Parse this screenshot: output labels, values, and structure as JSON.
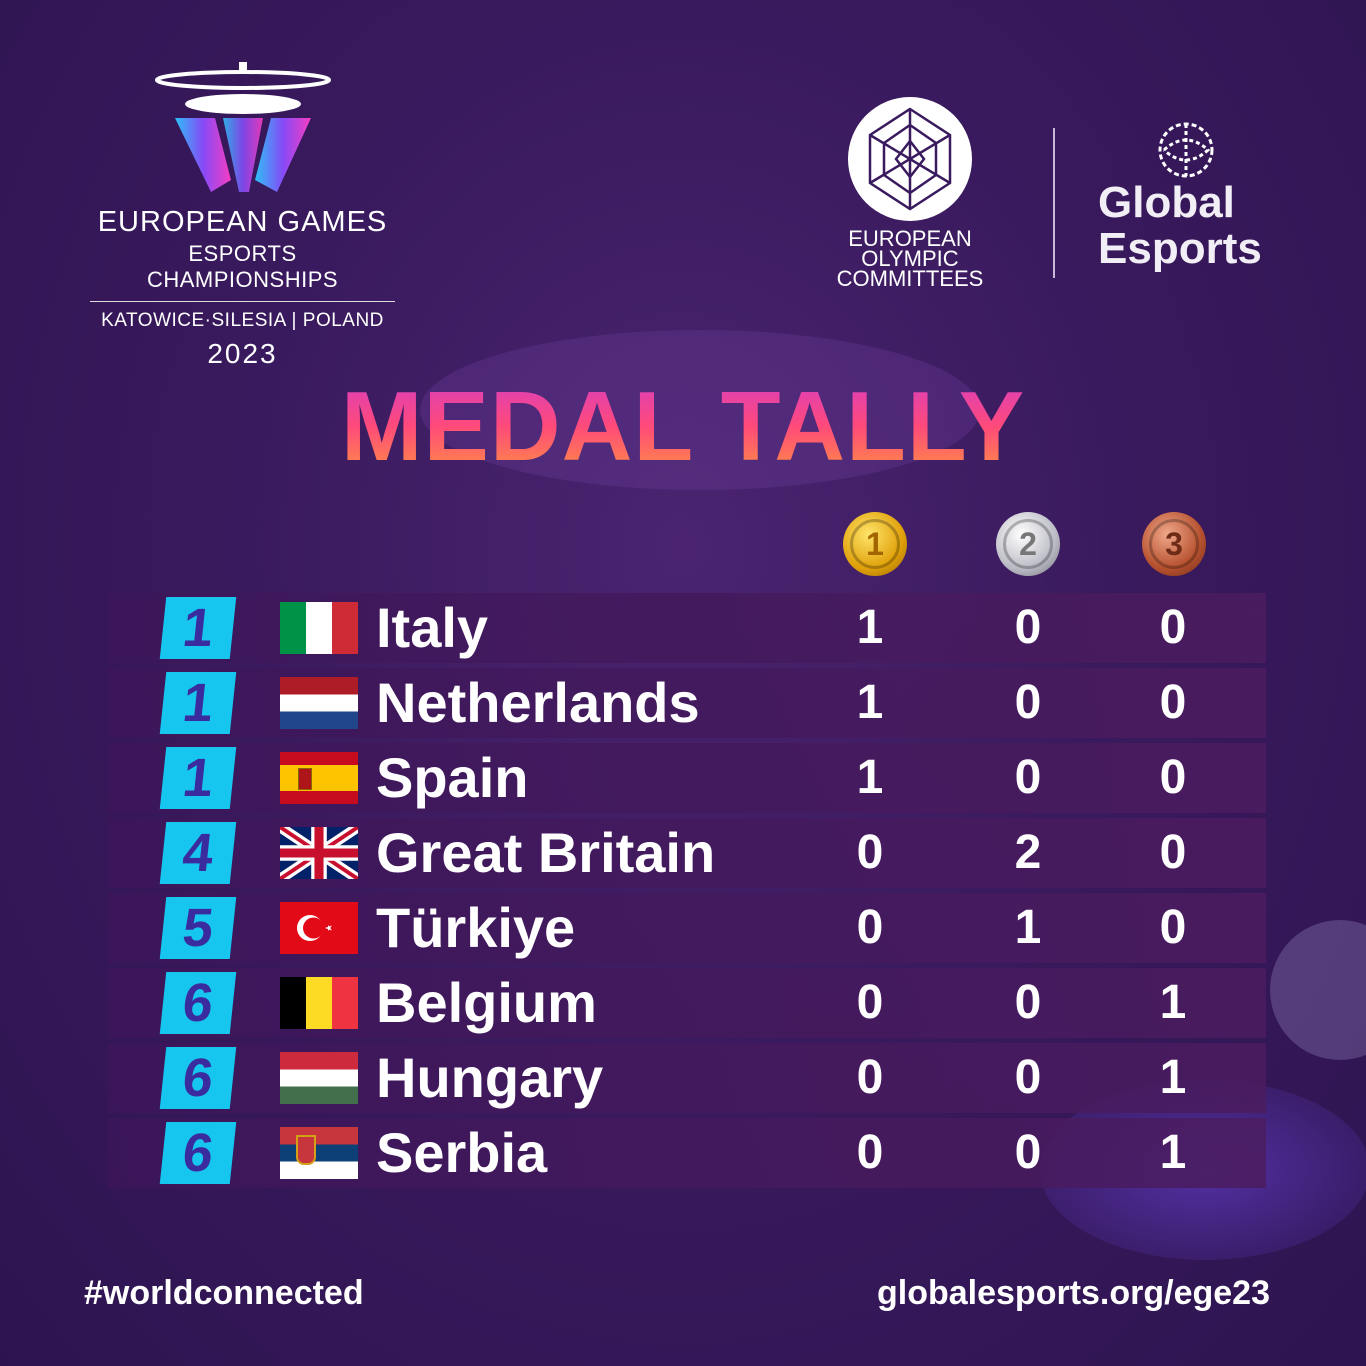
{
  "header": {
    "event": {
      "line1": "EUROPEAN GAMES",
      "line2": "ESPORTS CHAMPIONSHIPS",
      "location": "KATOWICE·SILESIA | POLAND",
      "year": "2023"
    },
    "eoc": {
      "line1": "EUROPEAN",
      "line2": "OLYMPIC",
      "line3": "COMMITTEES"
    },
    "global_esports": {
      "line1": "Global",
      "line2": "Esports"
    }
  },
  "title": "MEDAL TALLY",
  "medals": {
    "gold": "1",
    "silver": "2",
    "bronze": "3"
  },
  "standings": [
    {
      "rank": "1",
      "country": "Italy",
      "gold": "1",
      "silver": "0",
      "bronze": "0",
      "flag": "italy"
    },
    {
      "rank": "1",
      "country": "Netherlands",
      "gold": "1",
      "silver": "0",
      "bronze": "0",
      "flag": "netherlands"
    },
    {
      "rank": "1",
      "country": "Spain",
      "gold": "1",
      "silver": "0",
      "bronze": "0",
      "flag": "spain"
    },
    {
      "rank": "4",
      "country": "Great Britain",
      "gold": "0",
      "silver": "2",
      "bronze": "0",
      "flag": "great-britain"
    },
    {
      "rank": "5",
      "country": "Türkiye",
      "gold": "0",
      "silver": "1",
      "bronze": "0",
      "flag": "turkiye"
    },
    {
      "rank": "6",
      "country": "Belgium",
      "gold": "0",
      "silver": "0",
      "bronze": "1",
      "flag": "belgium"
    },
    {
      "rank": "6",
      "country": "Hungary",
      "gold": "0",
      "silver": "0",
      "bronze": "1",
      "flag": "hungary"
    },
    {
      "rank": "6",
      "country": "Serbia",
      "gold": "0",
      "silver": "0",
      "bronze": "1",
      "flag": "serbia"
    }
  ],
  "footer": {
    "hashtag": "#worldconnected",
    "url": "globalesports.org/ege23"
  }
}
